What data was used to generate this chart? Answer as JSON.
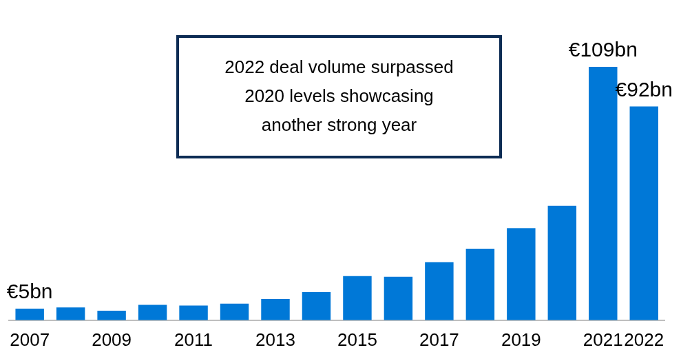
{
  "chart_data": {
    "type": "bar",
    "categories": [
      "2007",
      null,
      "2009",
      null,
      "2011",
      null,
      "2013",
      null,
      "2015",
      null,
      "2017",
      null,
      "2019",
      null,
      "2021",
      "2022"
    ],
    "values": [
      5,
      5.5,
      4.1,
      6.6,
      6.3,
      7.1,
      9.1,
      12.1,
      19,
      18.7,
      25,
      30.8,
      39.6,
      49.2,
      109,
      92
    ],
    "value_labels": [
      "€5bn",
      null,
      null,
      null,
      null,
      null,
      null,
      null,
      null,
      null,
      null,
      null,
      null,
      null,
      "€109bn",
      "€92bn"
    ],
    "color": "#0078d7",
    "annotations": [
      "2022 deal volume surpassed 2020 levels showcasing another strong year"
    ],
    "grid": false,
    "legend": false
  }
}
